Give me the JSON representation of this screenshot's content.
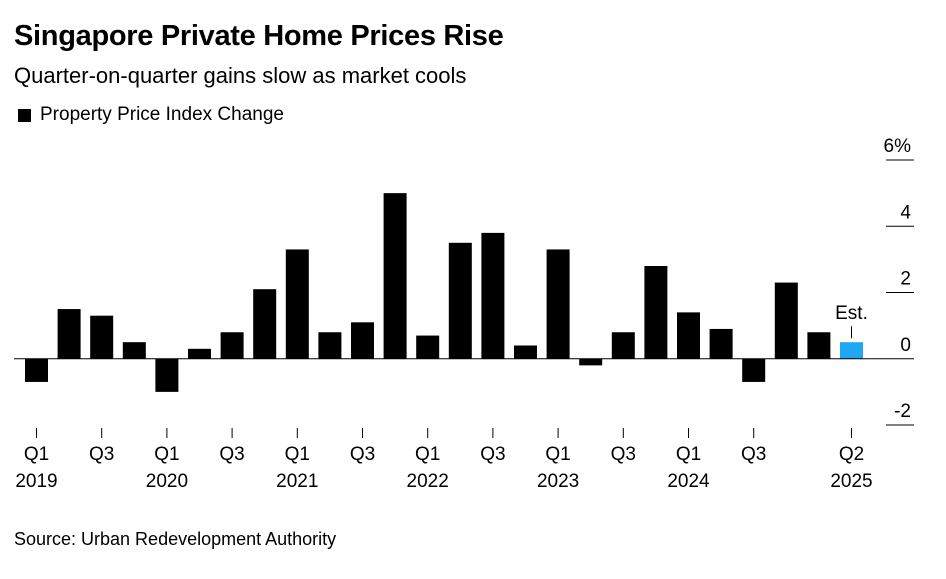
{
  "header": {
    "title": "Singapore Private Home Prices Rise",
    "subtitle": "Quarter-on-quarter gains slow as market cools",
    "legend_label": "Property Price Index Change",
    "source": "Source: Urban Redevelopment Authority"
  },
  "colors": {
    "bar": "#000000",
    "estimate": "#1fa7f2",
    "axis": "#000000"
  },
  "chart_data": {
    "type": "bar",
    "title": "Singapore Private Home Prices Rise",
    "subtitle": "Quarter-on-quarter gains slow as market cools",
    "categories": [
      "Q1 2019",
      "Q2 2019",
      "Q3 2019",
      "Q4 2019",
      "Q1 2020",
      "Q2 2020",
      "Q3 2020",
      "Q4 2020",
      "Q1 2021",
      "Q2 2021",
      "Q3 2021",
      "Q4 2021",
      "Q1 2022",
      "Q2 2022",
      "Q3 2022",
      "Q4 2022",
      "Q1 2023",
      "Q2 2023",
      "Q3 2023",
      "Q4 2023",
      "Q1 2024",
      "Q2 2024",
      "Q3 2024",
      "Q4 2024",
      "Q1 2025",
      "Q2 2025"
    ],
    "series": [
      {
        "name": "Property Price Index Change",
        "values": [
          -0.7,
          1.5,
          1.3,
          0.5,
          -1.0,
          0.3,
          0.8,
          2.1,
          3.3,
          0.8,
          1.1,
          5.0,
          0.7,
          3.5,
          3.8,
          0.4,
          3.3,
          -0.2,
          0.8,
          2.8,
          1.4,
          0.9,
          -0.7,
          2.3,
          0.8,
          0.5
        ]
      }
    ],
    "estimate_index": 25,
    "estimate_label": "Est.",
    "ylim": [
      -2,
      6
    ],
    "yticks": [
      -2,
      0,
      2,
      4,
      6
    ],
    "ytick_labels": [
      "-2",
      "0",
      "2",
      "4",
      "6%"
    ],
    "xtick_labels": [
      {
        "index": 0,
        "quarter": "Q1",
        "year": "2019"
      },
      {
        "index": 2,
        "quarter": "Q3",
        "year": ""
      },
      {
        "index": 4,
        "quarter": "Q1",
        "year": "2020"
      },
      {
        "index": 6,
        "quarter": "Q3",
        "year": ""
      },
      {
        "index": 8,
        "quarter": "Q1",
        "year": "2021"
      },
      {
        "index": 10,
        "quarter": "Q3",
        "year": ""
      },
      {
        "index": 12,
        "quarter": "Q1",
        "year": "2022"
      },
      {
        "index": 14,
        "quarter": "Q3",
        "year": ""
      },
      {
        "index": 16,
        "quarter": "Q1",
        "year": "2023"
      },
      {
        "index": 18,
        "quarter": "Q3",
        "year": ""
      },
      {
        "index": 20,
        "quarter": "Q1",
        "year": "2024"
      },
      {
        "index": 22,
        "quarter": "Q3",
        "year": ""
      },
      {
        "index": 25,
        "quarter": "Q2",
        "year": "2025"
      }
    ],
    "yaxis_position": "right",
    "grid": false,
    "legend_position": "top-left"
  }
}
